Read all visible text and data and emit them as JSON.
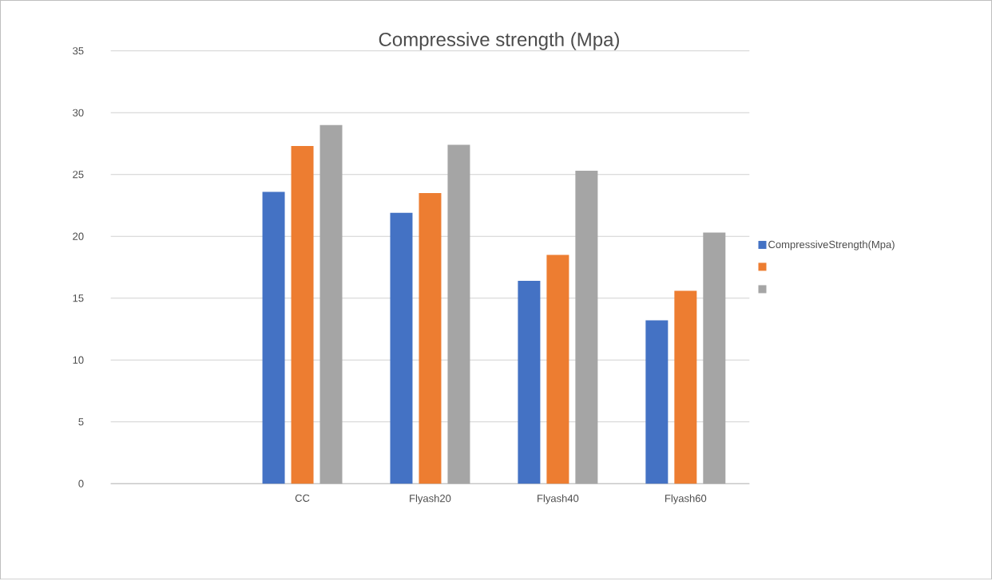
{
  "chart_data": {
    "type": "bar",
    "title": "Compressive strength (Mpa)",
    "categories": [
      null,
      "CC",
      "Flyash20",
      "Flyash40",
      "Flyash60"
    ],
    "series": [
      {
        "name": "CompressiveStrength(Mpa)",
        "color": "#4472c4",
        "values": [
          null,
          23.6,
          21.9,
          16.4,
          13.2
        ]
      },
      {
        "color": "#ed7d31",
        "values": [
          null,
          27.3,
          23.5,
          18.5,
          15.6
        ]
      },
      {
        "color": "#a5a5a5",
        "values": [
          null,
          29.0,
          27.4,
          25.3,
          20.3
        ]
      }
    ],
    "ylim": [
      0,
      35
    ],
    "yticks": [
      0,
      5,
      10,
      15,
      20,
      25,
      30,
      35
    ],
    "grid": "y",
    "legend": "right"
  }
}
